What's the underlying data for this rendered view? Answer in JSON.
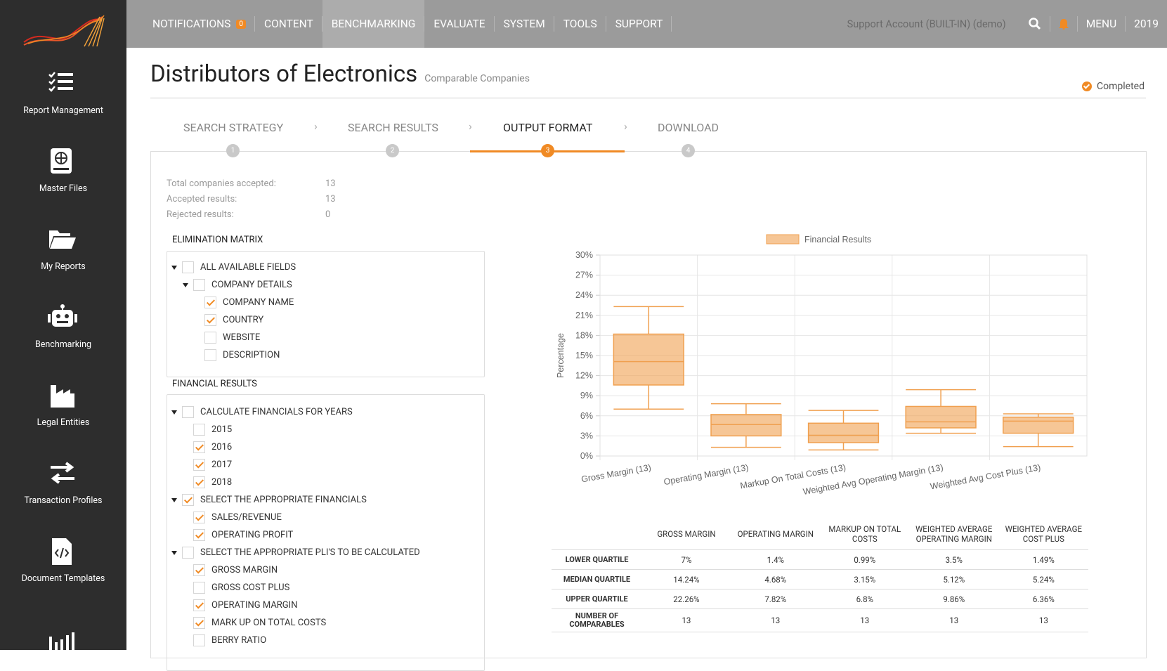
{
  "nav": {
    "items": [
      {
        "label": "NOTIFICATIONS",
        "active": false
      },
      {
        "label": "CONTENT",
        "active": false
      },
      {
        "label": "BENCHMARKING",
        "active": true
      },
      {
        "label": "EVALUATE",
        "active": false
      },
      {
        "label": "SYSTEM",
        "active": false
      },
      {
        "label": "TOOLS",
        "active": false
      },
      {
        "label": "SUPPORT",
        "active": false
      }
    ],
    "notifications": 0,
    "account": "Support Account (BUILT-IN) (demo)",
    "menu": "MENU",
    "year": "2019"
  },
  "sidebar": [
    "Report Management",
    "Master Files",
    "My Reports",
    "Benchmarking",
    "Legal Entities",
    "Transaction Profiles",
    "Document Templates"
  ],
  "header": {
    "title": "Distributors of Electronics",
    "subtitle": "Comparable Companies",
    "status": "Completed"
  },
  "steps": [
    {
      "label": "SEARCH STRATEGY",
      "number": "1",
      "active": false
    },
    {
      "label": "SEARCH RESULTS",
      "number": "2",
      "active": false
    },
    {
      "label": "OUTPUT FORMAT",
      "number": "3",
      "active": true
    },
    {
      "label": "DOWNLOAD",
      "number": "4",
      "active": false
    }
  ],
  "stats": [
    {
      "label": "Total companies accepted:",
      "value": 13
    },
    {
      "label": "Accepted results:",
      "value": 13
    },
    {
      "label": "Rejected results:",
      "value": 0
    }
  ],
  "elimination_matrix": {
    "title": "ELIMINATION MATRIX",
    "items": [
      {
        "label": "ALL AVAILABLE FIELDS",
        "checked": false,
        "children": [
          {
            "label": "COMPANY DETAILS",
            "checked": false,
            "children": [
              {
                "label": "COMPANY NAME",
                "checked": true
              },
              {
                "label": "COUNTRY",
                "checked": true
              },
              {
                "label": "WEBSITE",
                "checked": false
              },
              {
                "label": "DESCRIPTION",
                "checked": false
              }
            ]
          }
        ]
      }
    ]
  },
  "financial_results": {
    "title": "FINANCIAL RESULTS",
    "items": [
      {
        "label": "CALCULATE FINANCIALS FOR YEARS",
        "checked": false,
        "children": [
          {
            "label": "2015",
            "checked": false
          },
          {
            "label": "2016",
            "checked": true
          },
          {
            "label": "2017",
            "checked": true
          },
          {
            "label": "2018",
            "checked": true
          }
        ]
      },
      {
        "label": "SELECT THE APPROPRIATE FINANCIALS",
        "checked": true,
        "children": [
          {
            "label": "SALES/REVENUE",
            "checked": true
          },
          {
            "label": "OPERATING PROFIT",
            "checked": true
          }
        ]
      },
      {
        "label": "SELECT THE APPROPRIATE PLI'S TO BE CALCULATED",
        "checked": false,
        "children": [
          {
            "label": "GROSS MARGIN",
            "checked": true
          },
          {
            "label": "GROSS COST PLUS",
            "checked": false
          },
          {
            "label": "OPERATING MARGIN",
            "checked": true
          },
          {
            "label": "MARK UP ON TOTAL COSTS",
            "checked": true
          },
          {
            "label": "BERRY RATIO",
            "checked": false
          }
        ]
      }
    ]
  },
  "chart_data": {
    "type": "box",
    "y_label": "Percentage",
    "categories": [
      "Gross Margin (13)",
      "Operating Margin (13)",
      "Markup On Total Costs (13)",
      "Weighted Avg Operating Margin (13)",
      "Weighted Avg Cost Plus (13)"
    ],
    "series": [
      {
        "name": "Financial Results",
        "color": "#f0a050",
        "min": [
          7.0,
          1.3,
          0.9,
          3.4,
          1.4
        ],
        "q1": [
          10.6,
          3.0,
          2.0,
          4.2,
          3.4
        ],
        "median": [
          14.1,
          4.7,
          3.1,
          5.1,
          5.2
        ],
        "q3": [
          18.2,
          6.2,
          4.9,
          7.4,
          5.8
        ],
        "max": [
          22.3,
          7.8,
          6.8,
          9.9,
          6.3
        ]
      }
    ],
    "ylim": [
      0,
      30
    ],
    "yticks": [
      {
        "value": 0,
        "label": "0%"
      },
      {
        "value": 3,
        "label": "3%"
      },
      {
        "value": 6,
        "label": "6%"
      },
      {
        "value": 9,
        "label": "9%"
      },
      {
        "value": 12,
        "label": "12%"
      },
      {
        "value": 15,
        "label": "15%"
      },
      {
        "value": 18,
        "label": "18%"
      },
      {
        "value": 21,
        "label": "21%"
      },
      {
        "value": 24,
        "label": "24%"
      },
      {
        "value": 27,
        "label": "27%"
      },
      {
        "value": 30,
        "label": "30%"
      }
    ],
    "grid": true,
    "legend": "top"
  },
  "summary_table": {
    "headers": [
      "GROSS MARGIN",
      "OPERATING MARGIN",
      "MARKUP ON TOTAL COSTS",
      "WEIGHTED AVERAGE OPERATING MARGIN",
      "WEIGHTED AVERAGE COST PLUS"
    ],
    "rows": [
      {
        "label": "LOWER QUARTILE",
        "cells": [
          "7%",
          "1.4%",
          "0.99%",
          "3.5%",
          "1.49%"
        ]
      },
      {
        "label": "MEDIAN QUARTILE",
        "cells": [
          "14.24%",
          "4.68%",
          "3.15%",
          "5.12%",
          "5.24%"
        ]
      },
      {
        "label": "UPPER QUARTILE",
        "cells": [
          "22.26%",
          "7.82%",
          "6.8%",
          "9.86%",
          "6.36%"
        ]
      },
      {
        "label": "NUMBER OF COMPARABLES",
        "cells": [
          13,
          13,
          13,
          13,
          13
        ]
      }
    ]
  }
}
